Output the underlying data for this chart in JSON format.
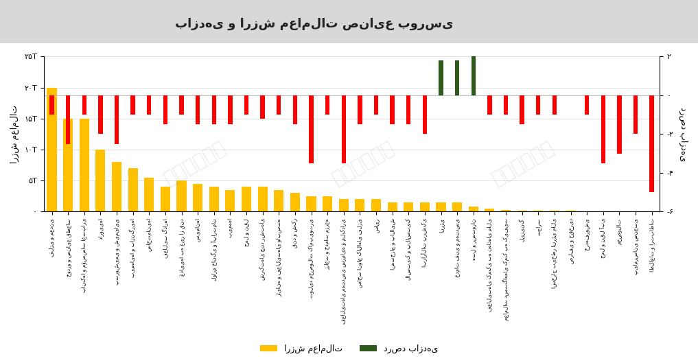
{
  "title": "بازدهی و ارزش معاملات صنایع بورسی",
  "ylabel_left": "ارزش معاملات",
  "ylabel_right": "درصد بازدهی",
  "ylim_left": [
    0,
    25
  ],
  "ylim_right": [
    -6,
    2
  ],
  "ytick_labels_left": [
    "۰",
    "۵T",
    "۱۰T",
    "۱۵T",
    "۲۰T",
    "۲۵T"
  ],
  "yticks_left_vals": [
    0,
    5,
    10,
    15,
    20,
    25
  ],
  "ytick_labels_right": [
    "-۶",
    "-۴",
    "-۲",
    "۰",
    "۲"
  ],
  "yticks_right_vals": [
    -6,
    -4,
    -2,
    0,
    2
  ],
  "categories": [
    "فلزی و معدنی",
    "خودرو و صنایع قطعات",
    "بانک‌ها و مؤسسات اعتباری",
    "دارویی‌ها",
    "پتروشیمی و شیمیایی",
    "بیمه‌ای‌ها و بازنگری‌ها",
    "ساختمانی‌ها",
    "فعالیت گذارها",
    "غذایی‌ها به غیر از قند",
    "سیمان‌ها",
    "لوازم خانگی و آپارتمان",
    "بیمه‌ها",
    "حمل و نقل",
    "شرکت‌های چند رشته‌ای",
    "رایانه و فعالیت‌های وابسته",
    "قند و شکر",
    "تولید محصولات کامپیوتری",
    "زراعت و خدمات مزرعه",
    "فعالیت‌های مهندسی سرمایه و ملکداری",
    "ساخت انواع کالاهای فلزی",
    "سایر",
    "استخراج و پالایش",
    "لاستیک و پلاستیک",
    "ابزارآلات پزشکی",
    "انرژی",
    "خدمات فنی و مهندسی",
    "هتل و رستوران",
    "فعالیت‌های کمکی به نهادهای مالی",
    "معاملات دستگاه‌های کمک به کیفیت",
    "لیزینگ",
    "تجارت",
    "اسخراج بی‌خطر انرژی مالی",
    "صرافی و حق‌خرید",
    "خرده‌فروشی",
    "حمل و نقل آبی",
    "محصولات",
    "پیام‌رسانی صنعتی",
    "اطلاعات و ارتباطات"
  ],
  "trading_values": [
    20,
    15,
    15,
    10,
    8,
    7,
    5.5,
    4,
    5,
    4.5,
    4,
    3.5,
    4,
    4,
    3.5,
    3,
    2.5,
    2.5,
    2,
    2,
    2,
    1.5,
    1.5,
    1.5,
    1.5,
    1.5,
    0.8,
    0.5,
    0.3,
    0.2,
    0.2,
    0.15,
    0.12,
    0.1,
    0.08,
    0.06,
    0.05,
    0.05
  ],
  "return_pct": [
    -1.0,
    -2.5,
    -1.0,
    -2.0,
    -2.5,
    -1.0,
    -1.0,
    -1.5,
    -1.0,
    -1.5,
    -1.5,
    -1.5,
    -1.0,
    -1.2,
    -1.0,
    -1.5,
    -3.5,
    -1.0,
    -3.5,
    -1.5,
    -1.0,
    -1.5,
    -1.5,
    -2.0,
    1.8,
    1.8,
    2.0,
    -1.0,
    -1.0,
    -1.5,
    -1.0,
    -1.0,
    0.0,
    -1.0,
    -3.5,
    -3.0,
    -2.0,
    -5.0
  ],
  "bar_color_value": "#FFC000",
  "bar_color_neg": "#FF0000",
  "bar_color_pos": "#2D5A1B",
  "background_color": "#FFFFFF",
  "legend_value_label": "ارزش معاملات",
  "legend_return_label": "درصد بازدهی",
  "watermark": "تابناک"
}
